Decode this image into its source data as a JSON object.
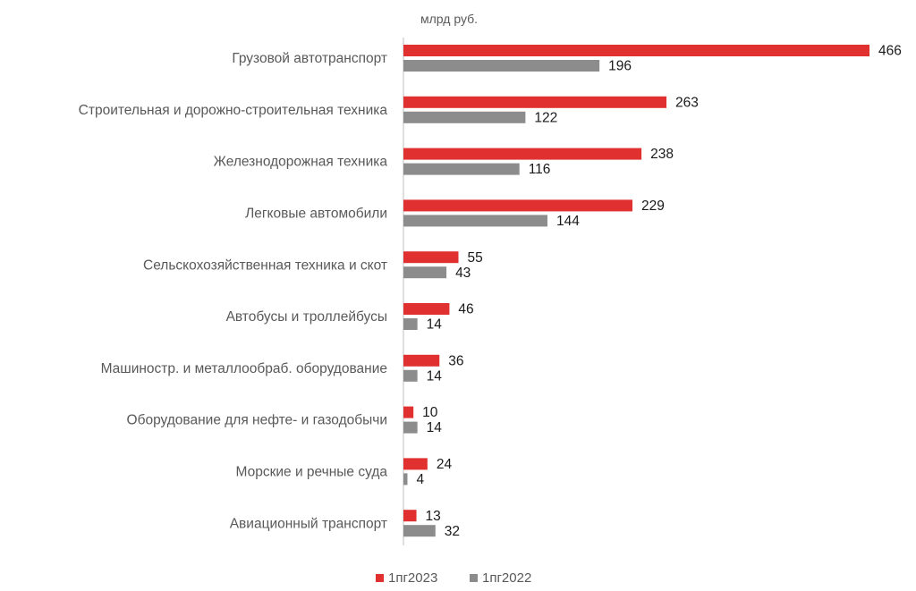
{
  "chart_data": {
    "type": "bar",
    "orientation": "horizontal",
    "unit_label": "млрд руб.",
    "categories": [
      "Грузовой автотранспорт",
      "Строительная и дорожно-строительная техника",
      "Железнодорожная техника",
      "Легковые автомобили",
      "Сельскохозяйственная техника и скот",
      "Автобусы и троллейбусы",
      "Машиностр. и металлообраб. оборудование",
      "Оборудование для нефте- и газодобычи",
      "Морские и речные суда",
      "Авиационный транспорт"
    ],
    "series": [
      {
        "name": "1пг2023",
        "color": "#e03030",
        "values": [
          466,
          263,
          238,
          229,
          55,
          46,
          36,
          10,
          24,
          13
        ]
      },
      {
        "name": "1пг2022",
        "color": "#8c8c8c",
        "values": [
          196,
          122,
          116,
          144,
          43,
          14,
          14,
          14,
          4,
          32
        ]
      }
    ],
    "xlim": [
      0,
      466
    ],
    "grid": false,
    "legend_position": "bottom"
  }
}
